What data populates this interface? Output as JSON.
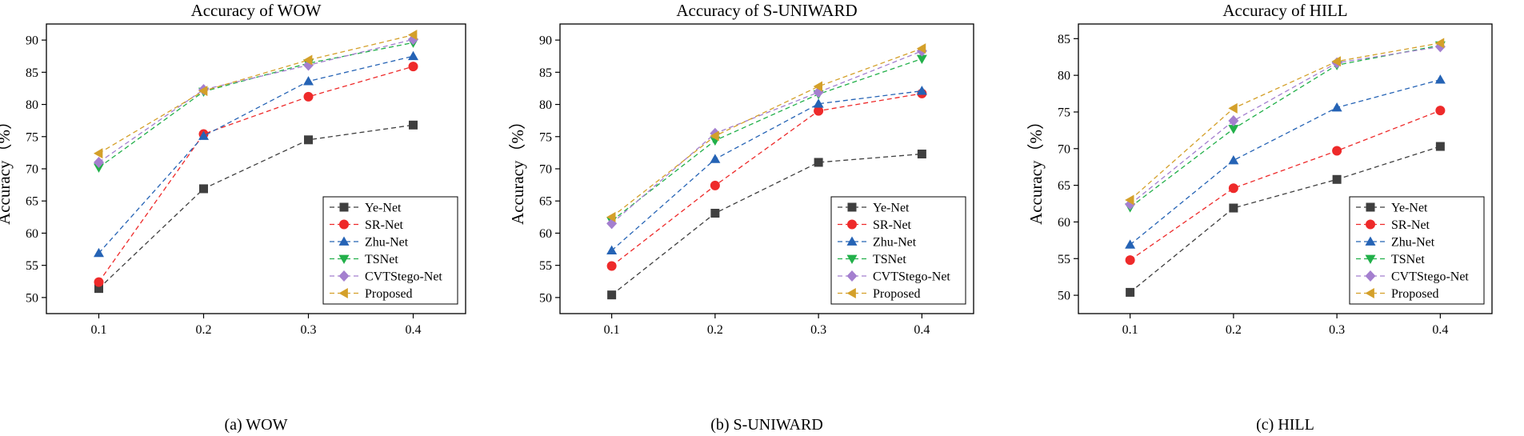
{
  "chart_data": [
    {
      "type": "line",
      "id": "wow",
      "title": "Accuracy  of  WOW",
      "caption": "(a) WOW",
      "xlabel": "",
      "ylabel": "Accuracy（%）",
      "x": [
        0.1,
        0.2,
        0.3,
        0.4
      ],
      "x_tick_labels": [
        "0.1",
        "0.2",
        "0.3",
        "0.4"
      ],
      "xlim": [
        0.05,
        0.45
      ],
      "ylim": [
        47.5,
        92.5
      ],
      "yticks": [
        50,
        55,
        60,
        65,
        70,
        75,
        80,
        85,
        90
      ],
      "legend_position": "bottom-right",
      "series": [
        {
          "name": "Ye-Net",
          "values": [
            51.4,
            66.9,
            74.5,
            76.8
          ]
        },
        {
          "name": "SR-Net",
          "values": [
            52.4,
            75.4,
            81.2,
            85.9
          ]
        },
        {
          "name": "Zhu-Net",
          "values": [
            56.9,
            75.1,
            83.6,
            87.5
          ]
        },
        {
          "name": "TSNet",
          "values": [
            70.2,
            82.0,
            86.4,
            89.6
          ]
        },
        {
          "name": "CVTStego-Net",
          "values": [
            71.0,
            82.3,
            86.1,
            90.1
          ]
        },
        {
          "name": "Proposed",
          "values": [
            72.4,
            82.1,
            86.9,
            90.8
          ]
        }
      ]
    },
    {
      "type": "line",
      "id": "suniward",
      "title": "Accuracy  of  S-UNIWARD",
      "caption": "(b) S-UNIWARD",
      "xlabel": "",
      "ylabel": "Accuracy（%）",
      "x": [
        0.1,
        0.2,
        0.3,
        0.4
      ],
      "x_tick_labels": [
        "0.1",
        "0.2",
        "0.3",
        "0.4"
      ],
      "xlim": [
        0.05,
        0.45
      ],
      "ylim": [
        47.5,
        92.5
      ],
      "yticks": [
        50,
        55,
        60,
        65,
        70,
        75,
        80,
        85,
        90
      ],
      "legend_position": "bottom-right",
      "series": [
        {
          "name": "Ye-Net",
          "values": [
            50.4,
            63.1,
            71.0,
            72.3
          ]
        },
        {
          "name": "SR-Net",
          "values": [
            54.9,
            67.4,
            79.0,
            81.7
          ]
        },
        {
          "name": "Zhu-Net",
          "values": [
            57.3,
            71.5,
            80.1,
            82.1
          ]
        },
        {
          "name": "TSNet",
          "values": [
            61.9,
            74.4,
            81.6,
            87.1
          ]
        },
        {
          "name": "CVTStego-Net",
          "values": [
            61.5,
            75.5,
            81.9,
            88.3
          ]
        },
        {
          "name": "Proposed",
          "values": [
            62.5,
            75.1,
            82.8,
            88.7
          ]
        }
      ]
    },
    {
      "type": "line",
      "id": "hill",
      "title": "Accuracy  of  HILL",
      "caption": "(c) HILL",
      "xlabel": "",
      "ylabel": "Accuracy（%）",
      "x": [
        0.1,
        0.2,
        0.3,
        0.4
      ],
      "x_tick_labels": [
        "0.1",
        "0.2",
        "0.3",
        "0.4"
      ],
      "xlim": [
        0.05,
        0.45
      ],
      "ylim": [
        47.5,
        87.0
      ],
      "yticks": [
        50,
        55,
        60,
        65,
        70,
        75,
        80,
        85
      ],
      "legend_position": "bottom-right",
      "series": [
        {
          "name": "Ye-Net",
          "values": [
            50.4,
            61.9,
            65.8,
            70.3
          ]
        },
        {
          "name": "SR-Net",
          "values": [
            54.8,
            64.6,
            69.7,
            75.2
          ]
        },
        {
          "name": "Zhu-Net",
          "values": [
            56.9,
            68.4,
            75.6,
            79.4
          ]
        },
        {
          "name": "TSNet",
          "values": [
            62.0,
            72.7,
            81.4,
            84.1
          ]
        },
        {
          "name": "CVTStego-Net",
          "values": [
            62.4,
            73.8,
            81.7,
            83.9
          ]
        },
        {
          "name": "Proposed",
          "values": [
            63.0,
            75.5,
            81.9,
            84.4
          ]
        }
      ]
    }
  ],
  "series_styles": [
    {
      "name": "Ye-Net",
      "color": "#3f3f3f",
      "marker": "square"
    },
    {
      "name": "SR-Net",
      "color": "#ee2a2a",
      "marker": "circle"
    },
    {
      "name": "Zhu-Net",
      "color": "#2563b5",
      "marker": "triangle-up"
    },
    {
      "name": "TSNet",
      "color": "#22b04a",
      "marker": "triangle-down"
    },
    {
      "name": "CVTStego-Net",
      "color": "#a47fcf",
      "marker": "diamond"
    },
    {
      "name": "Proposed",
      "color": "#d4a02a",
      "marker": "triangle-left"
    }
  ]
}
